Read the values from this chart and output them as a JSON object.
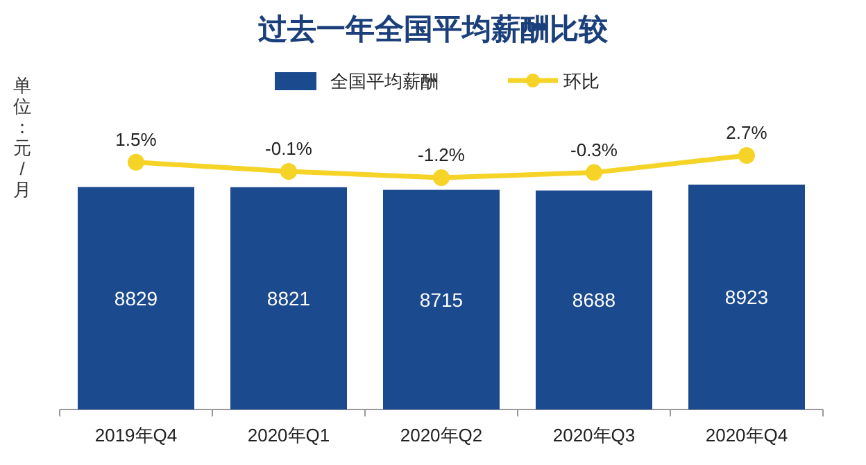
{
  "chart_data": [
    {
      "type": "bar",
      "ylabel": "单位：元/月",
      "legend": "top",
      "categories": [
        "2019年Q4",
        "2020年Q1",
        "2020年Q2",
        "2020年Q3",
        "2020年Q4"
      ],
      "series": [
        {
          "name": "全国平均薪酬",
          "color": "#1b4a8f",
          "values": [
            8829,
            8821,
            8715,
            8688,
            8923
          ],
          "value_labels": [
            "8829",
            "8821",
            "8715",
            "8688",
            "8923"
          ]
        }
      ]
    },
    {
      "type": "line",
      "title": "过去一年全国平均薪酬比较",
      "marker": "circle",
      "tick_labels": false,
      "categories": [
        null,
        null,
        null,
        null,
        null
      ],
      "series": [
        {
          "name": "环比",
          "color": "#f5d327",
          "values": [
            1.5,
            -0.1,
            -1.2,
            -0.3,
            2.7
          ],
          "value_labels": [
            "1.5%",
            "-0.1%",
            "-1.2%",
            "-0.3%",
            "2.7%"
          ]
        }
      ]
    }
  ]
}
